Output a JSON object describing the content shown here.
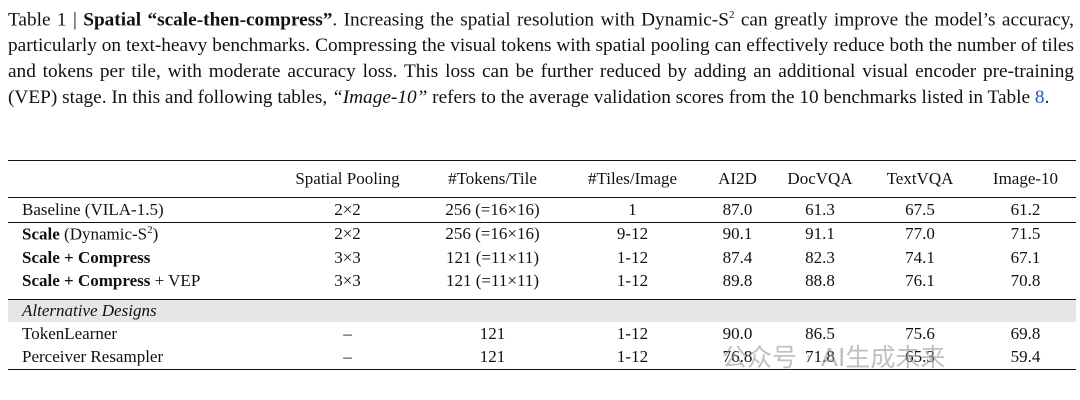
{
  "caption": {
    "label": "Table 1 |",
    "title": "Spatial “scale-then-compress”",
    "text1": ". Increasing the spatial resolution with Dynamic-S",
    "sup": "2",
    "text2": " can greatly improve the model’s accuracy, particularly on text-heavy benchmarks. Compressing the visual tokens with spatial pooling can effectively reduce both the number of tiles and tokens per tile, with moderate accuracy loss. This loss can be further reduced by adding an additional visual encoder pre-training (VEP) stage. In this and following tables, ",
    "italic": "“Image-10”",
    "text3": " refers to the average validation scores from the 10 benchmarks listed in Table ",
    "ref": "8",
    "end": "."
  },
  "table": {
    "header": [
      "Spatial Pooling",
      "#Tokens/Tile",
      "#Tiles/Image",
      "AI2D",
      "DocVQA",
      "TextVQA",
      "Image-10"
    ],
    "rows": [
      {
        "label": "Baseline (VILA-1.5)",
        "cells": [
          "2×2",
          "256 (=16×16)",
          "1",
          "87.0",
          "61.3",
          "67.5",
          "61.2"
        ]
      },
      {
        "label": [
          "Scale",
          "(Dynamic-S",
          "2",
          ")"
        ],
        "cells": [
          "2×2",
          "256 (=16×16)",
          "9-12",
          "90.1",
          "91.1",
          "77.0",
          "71.5"
        ]
      },
      {
        "label": "Scale + Compress",
        "cells": [
          "3×3",
          "121 (=11×11)",
          "1-12",
          "87.4",
          "82.3",
          "74.1",
          "67.1"
        ]
      },
      {
        "label": [
          "Scale + Compress",
          "+ VEP"
        ],
        "cells": [
          "3×3",
          "121 (=11×11)",
          "1-12",
          "89.8",
          "88.8",
          "76.1",
          "70.8"
        ]
      },
      {
        "label": "TokenLearner",
        "cells": [
          "–",
          "121",
          "1-12",
          "90.0",
          "86.5",
          "75.6",
          "69.8"
        ]
      },
      {
        "label": "Perceiver Resampler",
        "cells": [
          "–",
          "121",
          "1-12",
          "76.8",
          "71.8",
          "65.3",
          "59.4"
        ]
      }
    ],
    "section": "Alternative Designs"
  },
  "watermark": "公众号 · AI生成未来"
}
